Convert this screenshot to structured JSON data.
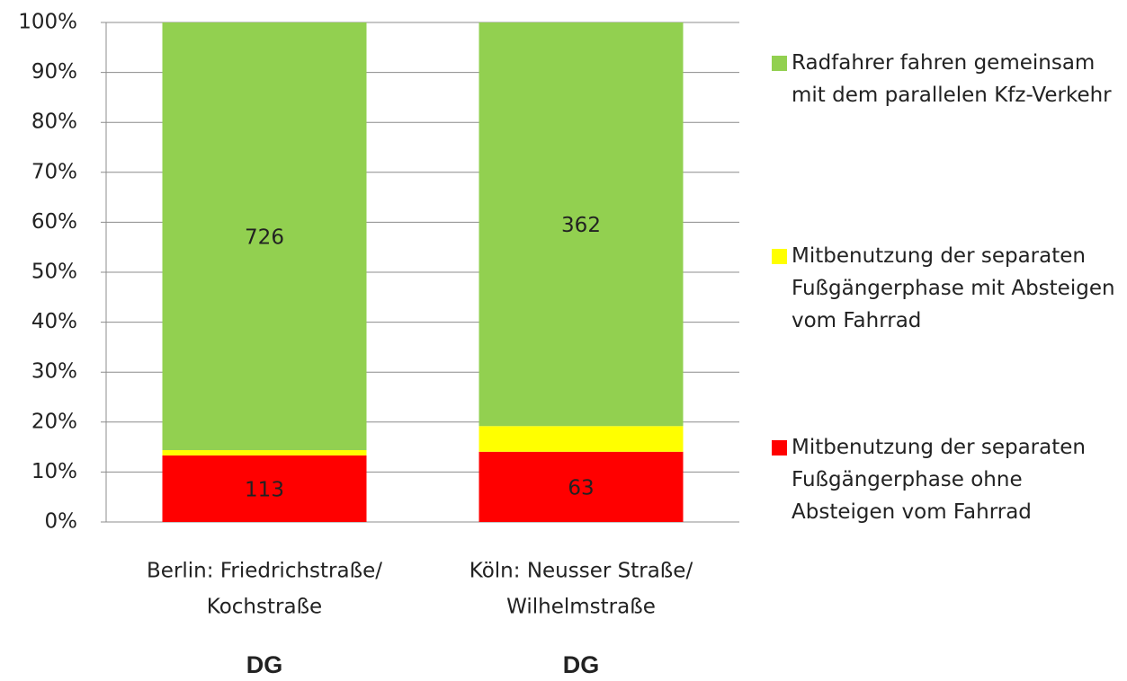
{
  "chart_data": {
    "type": "bar",
    "stacking": "percent",
    "categories": [
      [
        "Berlin: Friedrichstraße/",
        "Kochstraße"
      ],
      [
        "Köln: Neusser Straße/",
        "Wilhelmstraße"
      ]
    ],
    "series": [
      {
        "name": "Mitbenutzung der separaten Fußgängerphase ohne Absteigen vom Fahrrad",
        "color": "#ff0000",
        "values": [
          113,
          63
        ]
      },
      {
        "name": "Mitbenutzung der separaten Fußgängerphase mit Absteigen vom Fahrrad",
        "color": "#ffff00",
        "values": [
          9,
          23
        ]
      },
      {
        "name": "Radfahrer fahren gemeinsam mit dem parallelen Kfz-Verkehr",
        "color": "#92d050",
        "values": [
          726,
          362
        ]
      }
    ],
    "ylim": [
      0,
      100
    ],
    "yticks": [
      {
        "value": 0,
        "label": "0%"
      },
      {
        "value": 10,
        "label": "10%"
      },
      {
        "value": 20,
        "label": "20%"
      },
      {
        "value": 30,
        "label": "30%"
      },
      {
        "value": 40,
        "label": "40%"
      },
      {
        "value": 50,
        "label": "50%"
      },
      {
        "value": 60,
        "label": "60%"
      },
      {
        "value": 70,
        "label": "70%"
      },
      {
        "value": 80,
        "label": "80%"
      },
      {
        "value": 90,
        "label": "90%"
      },
      {
        "value": 100,
        "label": "100%"
      }
    ],
    "grid": true,
    "legend": "right",
    "annotations": [
      "DG",
      "DG"
    ],
    "annotation_color": "#00b050"
  }
}
